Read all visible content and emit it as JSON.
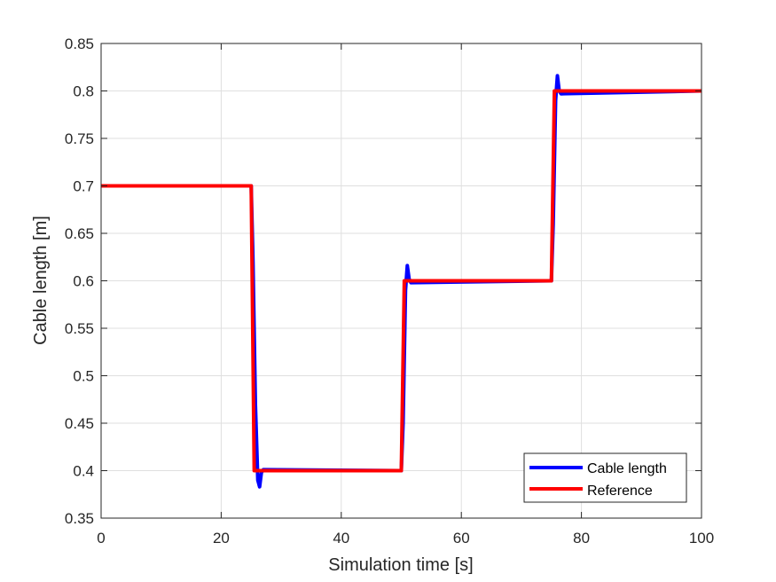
{
  "chart_data": {
    "type": "line",
    "xlabel": "Simulation time [s]",
    "ylabel": "Cable length [m]",
    "xlim": [
      0,
      100
    ],
    "ylim": [
      0.35,
      0.85
    ],
    "xticks": [
      0,
      20,
      40,
      60,
      80,
      100
    ],
    "xtick_labels": [
      "0",
      "20",
      "40",
      "60",
      "80",
      "100"
    ],
    "yticks": [
      0.35,
      0.4,
      0.45,
      0.5,
      0.55,
      0.6,
      0.65,
      0.7,
      0.75,
      0.8,
      0.85
    ],
    "ytick_labels": [
      "0.35",
      "0.4",
      "0.45",
      "0.5",
      "0.55",
      "0.6",
      "0.65",
      "0.7",
      "0.75",
      "0.8",
      "0.85"
    ],
    "grid": true,
    "legend_position": "bottom-right",
    "series": [
      {
        "name": "Cable length",
        "color": "#0000ff",
        "x": [
          0,
          25.0,
          25.3,
          25.7,
          26.1,
          26.4,
          26.7,
          27.0,
          50.0,
          50.3,
          50.7,
          51.0,
          51.3,
          51.6,
          75.0,
          75.3,
          75.7,
          76.0,
          76.3,
          76.6,
          100
        ],
        "y": [
          0.7,
          0.7,
          0.62,
          0.47,
          0.39,
          0.383,
          0.398,
          0.401,
          0.4,
          0.45,
          0.59,
          0.616,
          0.602,
          0.598,
          0.6,
          0.66,
          0.79,
          0.816,
          0.8,
          0.797,
          0.8
        ]
      },
      {
        "name": "Reference",
        "color": "#ff0000",
        "x": [
          0,
          25,
          25.5,
          50,
          50.5,
          75,
          75.5,
          100
        ],
        "y": [
          0.7,
          0.7,
          0.4,
          0.4,
          0.6,
          0.6,
          0.8,
          0.8
        ]
      }
    ]
  }
}
